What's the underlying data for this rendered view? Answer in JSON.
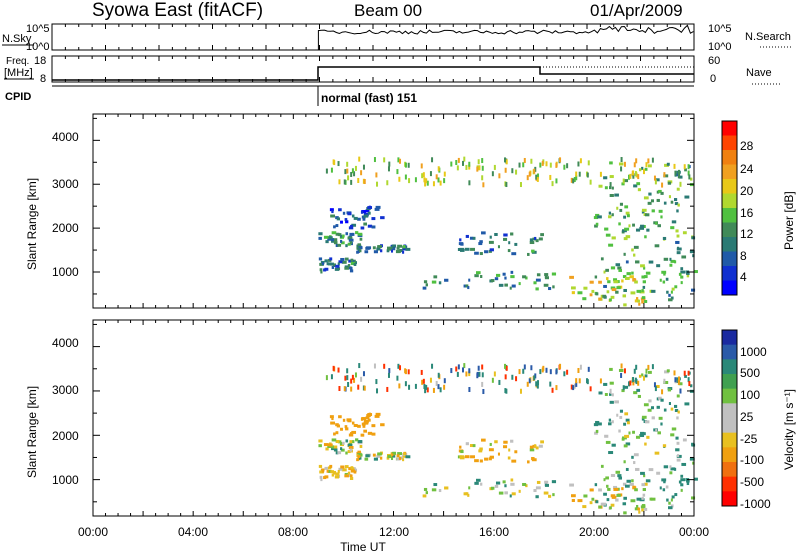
{
  "header": {
    "station": "Syowa East (fitACF)",
    "beam": "Beam 00",
    "date": "01/Apr/2009"
  },
  "top_panels": {
    "nsky": {
      "label": "N.Sky",
      "y_ticks": [
        "10^5",
        "10^0"
      ],
      "right_ticks": [
        "10^5",
        "10^0"
      ],
      "right_label": "N.Search"
    },
    "freq": {
      "label_line1": "Freq.",
      "label_line2": "[MHz]",
      "y_ticks": [
        "18",
        "8"
      ],
      "right_ticks": [
        "60",
        "0"
      ],
      "right_label": "Nave"
    },
    "cpid": {
      "label": "CPID",
      "mode_text": "normal (fast) 151"
    }
  },
  "time_axis": {
    "title": "Time UT",
    "ticks": [
      "00:00",
      "04:00",
      "08:00",
      "12:00",
      "16:00",
      "20:00",
      "00:00"
    ]
  },
  "power_panel": {
    "ylabel": "Slant Range [km]",
    "y_ticks": [
      "1000",
      "2000",
      "3000",
      "4000"
    ],
    "colorbar_label": "Power [dB]",
    "colorbar_ticks": [
      "28",
      "24",
      "20",
      "16",
      "12",
      "8",
      "4"
    ],
    "colors": [
      "#ff0000",
      "#ff4400",
      "#f08010",
      "#f0a020",
      "#e8c818",
      "#b0d830",
      "#50c040",
      "#408a58",
      "#2a7a74",
      "#205aa8",
      "#1030d0",
      "#0000ff"
    ]
  },
  "velocity_panel": {
    "ylabel": "Slant Range [km]",
    "y_ticks": [
      "1000",
      "2000",
      "3000",
      "4000"
    ],
    "colorbar_label": "Velocity [m s⁻¹]",
    "colorbar_ticks": [
      "1000",
      "500",
      "100",
      "25",
      "-25",
      "-100",
      "-500",
      "-1000"
    ],
    "colors": [
      "#1a2aa0",
      "#2a5aa8",
      "#2a8878",
      "#40a050",
      "#70c040",
      "#c0c0c0",
      "#c0c0c0",
      "#e8c020",
      "#f0a010",
      "#f07010",
      "#ff3000",
      "#ff0000"
    ]
  },
  "chart_data": {
    "type": "heatmap",
    "title": "Syowa East (fitACF)",
    "xlabel": "Time UT",
    "ylabel": "Slant Range [km]",
    "xlim": [
      0,
      24
    ],
    "ylim": [
      180,
      4600
    ],
    "data_start_hour": 9,
    "series": [
      {
        "name": "Power [dB]",
        "range": [
          0,
          30
        ]
      },
      {
        "name": "Velocity [m s⁻¹]",
        "range": [
          -1000,
          1000
        ]
      }
    ],
    "echo_regions": [
      {
        "t0": 9.0,
        "t1": 10.7,
        "r0": 1550,
        "r1": 1900,
        "power": 10,
        "velocity": 0
      },
      {
        "t0": 10.5,
        "t1": 12.5,
        "r0": 1450,
        "r1": 1600,
        "power": 8,
        "velocity": 0
      },
      {
        "t0": 9.0,
        "t1": 10.5,
        "r0": 1000,
        "r1": 1300,
        "power": 8,
        "velocity": -100
      },
      {
        "t0": 9.4,
        "t1": 11.5,
        "r0": 2000,
        "r1": 2500,
        "power": 6,
        "velocity": -300
      },
      {
        "t0": 13.0,
        "t1": 18.5,
        "r0": 600,
        "r1": 1000,
        "power": 10,
        "velocity": 50
      },
      {
        "t0": 14.5,
        "t1": 18.0,
        "r0": 1400,
        "r1": 1900,
        "power": 8,
        "velocity": -100
      },
      {
        "t0": 19.0,
        "t1": 22.0,
        "r0": 250,
        "r1": 900,
        "power": 18,
        "velocity": -50
      },
      {
        "t0": 20.0,
        "t1": 24.0,
        "r0": 300,
        "r1": 3500,
        "power": 12,
        "velocity": 100
      }
    ]
  }
}
